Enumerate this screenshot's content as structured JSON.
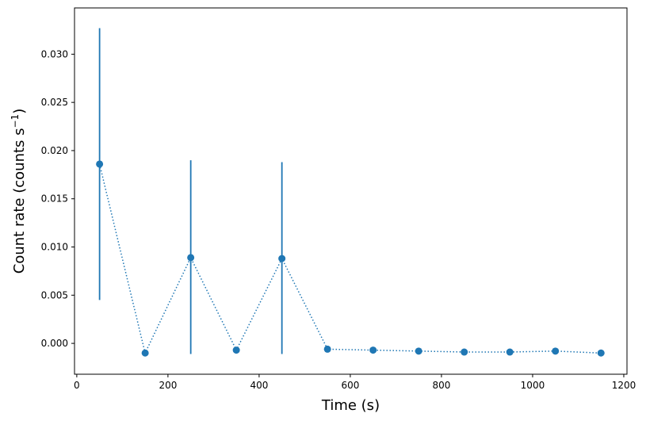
{
  "chart_data": {
    "type": "scatter",
    "xlabel": "Time (s)",
    "ylabel": {
      "main": "Count rate (counts s",
      "sup": "−1",
      "close": ")"
    },
    "xlim": [
      -5,
      1207
    ],
    "ylim": [
      -0.0032,
      0.0348
    ],
    "x_ticks": [
      0,
      200,
      400,
      600,
      800,
      1000,
      1200
    ],
    "x_tick_labels": [
      "0",
      "200",
      "400",
      "600",
      "800",
      "1000",
      "1200"
    ],
    "y_ticks": [
      0.0,
      0.005,
      0.01,
      0.015,
      0.02,
      0.025,
      0.03
    ],
    "y_tick_labels": [
      "0.000",
      "0.005",
      "0.010",
      "0.015",
      "0.020",
      "0.025",
      "0.030"
    ],
    "grid": false,
    "legend": "none",
    "line_style": "dotted",
    "color": "#1f77b4",
    "series": [
      {
        "x": [
          50,
          150,
          250,
          350,
          450,
          550,
          650,
          750,
          850,
          950,
          1050,
          1150
        ],
        "y": [
          0.0186,
          -0.001,
          0.0089,
          -0.0007,
          0.0088,
          -0.0006,
          -0.0007,
          -0.0008,
          -0.0009,
          -0.0009,
          -0.0008,
          -0.001
        ],
        "yerr_low": [
          0.0045,
          null,
          -0.0011,
          null,
          -0.0011,
          null,
          null,
          null,
          null,
          null,
          null,
          null
        ],
        "yerr_high": [
          0.0327,
          null,
          0.019,
          null,
          0.0188,
          null,
          null,
          null,
          null,
          null,
          null,
          null
        ]
      }
    ]
  }
}
